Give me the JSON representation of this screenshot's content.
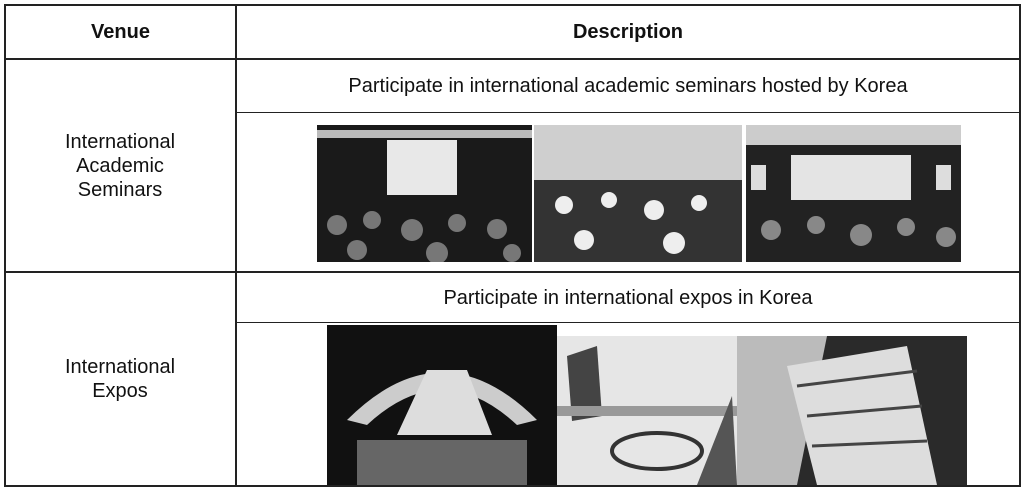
{
  "header": {
    "venue": "Venue",
    "description": "Description"
  },
  "rows": [
    {
      "venue": "International Academic Seminars",
      "description": "Participate in international academic seminars hosted by Korea"
    },
    {
      "venue": "International Expos",
      "description": "Participate in international expos in Korea"
    }
  ]
}
